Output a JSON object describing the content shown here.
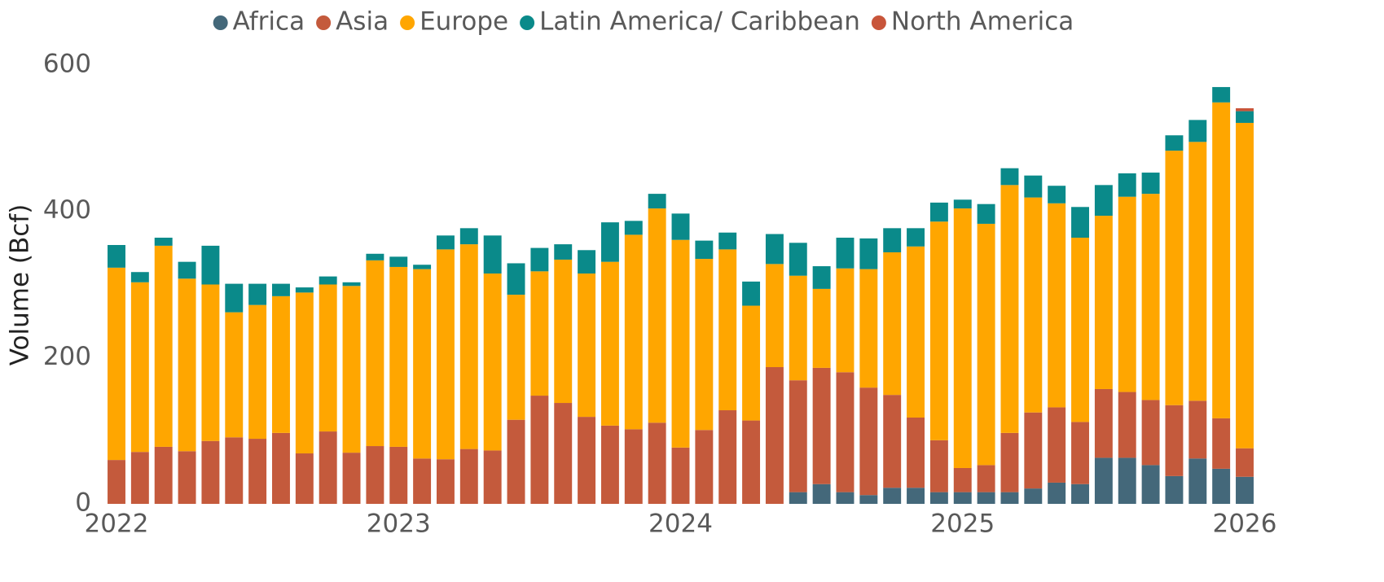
{
  "chart_data": {
    "type": "stacked-bar",
    "y_label": "Volume (Bcf)",
    "xlim": [
      2022,
      2026
    ],
    "xticks": [
      2022,
      2023,
      2024,
      2025,
      2026
    ],
    "ylim": [
      0,
      600
    ],
    "yticks": [
      0,
      200,
      400,
      600
    ],
    "grid": false,
    "legend": "top",
    "series": [
      {
        "name": "Africa",
        "color": "#44687a",
        "values": [
          0,
          0,
          0,
          0,
          0,
          0,
          0,
          0,
          0,
          0,
          0,
          0,
          0,
          0,
          0,
          0,
          0,
          0,
          0,
          0,
          0,
          0,
          0,
          0,
          0,
          0,
          0,
          0,
          0,
          16,
          27,
          16,
          12,
          22,
          22,
          16,
          16,
          16,
          16,
          21,
          29,
          27,
          63,
          63,
          53,
          38,
          62,
          48,
          37
        ]
      },
      {
        "name": "Asia",
        "color": "#c45a3c",
        "values": [
          60,
          71,
          78,
          72,
          86,
          91,
          89,
          97,
          69,
          99,
          70,
          79,
          78,
          62,
          61,
          75,
          73,
          115,
          148,
          138,
          119,
          107,
          102,
          111,
          77,
          101,
          128,
          114,
          187,
          153,
          159,
          164,
          147,
          127,
          96,
          71,
          33,
          37,
          81,
          104,
          103,
          85,
          94,
          90,
          89,
          97,
          79,
          69,
          39
        ]
      },
      {
        "name": "Europe",
        "color": "#ffa600",
        "values": [
          263,
          232,
          275,
          236,
          214,
          171,
          183,
          187,
          220,
          201,
          228,
          254,
          246,
          259,
          287,
          280,
          242,
          171,
          170,
          196,
          196,
          224,
          266,
          293,
          284,
          234,
          220,
          157,
          141,
          143,
          108,
          142,
          162,
          195,
          234,
          299,
          355,
          330,
          339,
          294,
          279,
          252,
          237,
          267,
          282,
          348,
          354,
          432,
          445
        ]
      },
      {
        "name": "Latin America/ Caribbean",
        "color": "#0a8a8a",
        "values": [
          31,
          14,
          11,
          23,
          53,
          39,
          29,
          17,
          7,
          11,
          5,
          9,
          14,
          6,
          19,
          22,
          52,
          43,
          32,
          21,
          32,
          54,
          19,
          20,
          36,
          25,
          23,
          33,
          41,
          45,
          31,
          42,
          42,
          33,
          25,
          26,
          12,
          27,
          23,
          30,
          24,
          42,
          42,
          32,
          29,
          21,
          30,
          21,
          16
        ]
      },
      {
        "name": "North America",
        "color": "#c8553a",
        "values": [
          0,
          0,
          0,
          0,
          0,
          0,
          0,
          0,
          0,
          0,
          0,
          0,
          0,
          0,
          0,
          0,
          0,
          0,
          0,
          0,
          0,
          0,
          0,
          0,
          0,
          0,
          0,
          0,
          0,
          0,
          0,
          0,
          0,
          0,
          0,
          0,
          0,
          0,
          0,
          0,
          0,
          0,
          0,
          0,
          0,
          0,
          0,
          0,
          4
        ]
      }
    ]
  }
}
